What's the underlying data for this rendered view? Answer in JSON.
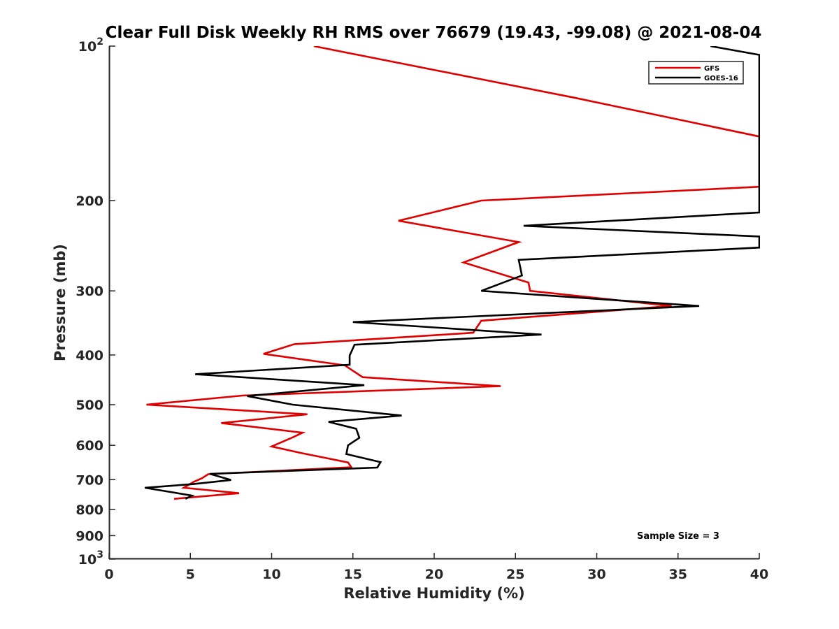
{
  "chart_data": {
    "type": "line",
    "title": "Clear Full Disk Weekly RH RMS over 76679 (19.43, -99.08) @ 2021-08-04",
    "xlabel": "Relative Humidity (%)",
    "ylabel": "Pressure (mb)",
    "xlim": [
      0,
      40
    ],
    "ylim": [
      100,
      1000
    ],
    "y_scale": "log",
    "y_reversed": true,
    "x_ticks": [
      "0",
      "5",
      "10",
      "15",
      "20",
      "25",
      "30",
      "35",
      "40"
    ],
    "y_ticks": [
      {
        "value": 100,
        "label": "10",
        "sup": "2"
      },
      {
        "value": 200,
        "label": "200"
      },
      {
        "value": 300,
        "label": "300"
      },
      {
        "value": 400,
        "label": "400"
      },
      {
        "value": 500,
        "label": "500"
      },
      {
        "value": 600,
        "label": "600"
      },
      {
        "value": 700,
        "label": "700"
      },
      {
        "value": 800,
        "label": "800"
      },
      {
        "value": 900,
        "label": "900"
      },
      {
        "value": 1000,
        "label": "10",
        "sup": "3"
      }
    ],
    "grid": false,
    "legend_position": "top-right",
    "annotation": "Sample Size = 3",
    "series": [
      {
        "name": "GFS",
        "color": "#e00000",
        "points": [
          [
            12.6,
            100
          ],
          [
            28.6,
            126
          ],
          [
            40,
            150
          ],
          [
            40,
            188
          ],
          [
            22.9,
            200
          ],
          [
            17.8,
            219
          ],
          [
            25.2,
            241
          ],
          [
            21.8,
            264
          ],
          [
            25.8,
            289
          ],
          [
            25.9,
            300
          ],
          [
            34.6,
            321
          ],
          [
            22.9,
            343
          ],
          [
            22.4,
            362
          ],
          [
            11.4,
            381
          ],
          [
            9.5,
            398
          ],
          [
            14.5,
            419
          ],
          [
            15.6,
            442
          ],
          [
            24.1,
            460
          ],
          [
            8.2,
            480
          ],
          [
            2.3,
            500
          ],
          [
            12.2,
            522
          ],
          [
            6.9,
            543
          ],
          [
            11.9,
            567
          ],
          [
            11.3,
            579
          ],
          [
            10.0,
            603
          ],
          [
            11.8,
            621
          ],
          [
            14.7,
            648
          ],
          [
            14.9,
            662
          ],
          [
            6.1,
            683
          ],
          [
            5.7,
            696
          ],
          [
            5.2,
            707
          ],
          [
            4.6,
            726
          ],
          [
            8.0,
            744
          ],
          [
            4.0,
            763
          ]
        ]
      },
      {
        "name": "GOES-16",
        "color": "#000000",
        "points": [
          [
            37,
            100
          ],
          [
            40,
            104
          ],
          [
            40,
            211
          ],
          [
            25.5,
            224
          ],
          [
            40,
            235
          ],
          [
            40,
            247
          ],
          [
            25.2,
            261
          ],
          [
            25.4,
            280
          ],
          [
            22.9,
            300
          ],
          [
            36.3,
            321
          ],
          [
            15.0,
            345
          ],
          [
            26.6,
            365
          ],
          [
            15.1,
            382
          ],
          [
            14.8,
            401
          ],
          [
            14.8,
            418
          ],
          [
            5.3,
            436
          ],
          [
            15.7,
            458
          ],
          [
            8.5,
            481
          ],
          [
            11.3,
            500
          ],
          [
            18.0,
            525
          ],
          [
            13.5,
            540
          ],
          [
            15.2,
            557
          ],
          [
            15.4,
            580
          ],
          [
            14.7,
            600
          ],
          [
            14.6,
            624
          ],
          [
            16.7,
            647
          ],
          [
            16.5,
            663
          ],
          [
            6.2,
            682
          ],
          [
            7.5,
            701
          ],
          [
            5.2,
            714
          ],
          [
            2.2,
            726
          ],
          [
            5.1,
            752
          ],
          [
            4.7,
            763
          ]
        ]
      }
    ]
  }
}
